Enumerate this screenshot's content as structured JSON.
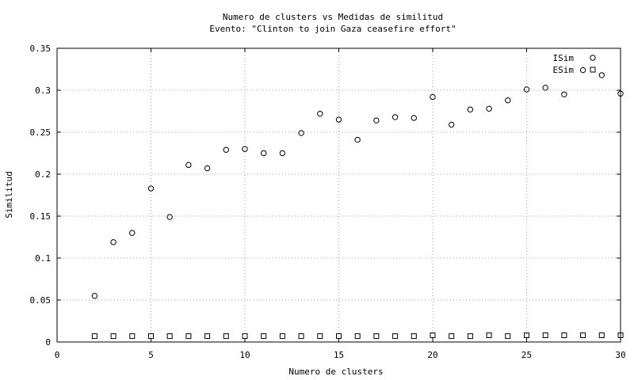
{
  "chart_data": {
    "type": "scatter",
    "title": "Numero de clusters vs Medidas de similitud",
    "subtitle": "Evento: \"Clinton to join Gaza ceasefire effort\"",
    "xlabel": "Numero de clusters",
    "ylabel": "Similitud",
    "xlim": [
      0,
      30
    ],
    "ylim": [
      0,
      0.35
    ],
    "xticks": [
      0,
      5,
      10,
      15,
      20,
      25,
      30
    ],
    "yticks": [
      0,
      0.05,
      0.1,
      0.15,
      0.2,
      0.25,
      0.3,
      0.35
    ],
    "xtick_labels": [
      "0",
      "5",
      "10",
      "15",
      "20",
      "25",
      "30"
    ],
    "ytick_labels": [
      "0",
      "0.05",
      "0.1",
      "0.15",
      "0.2",
      "0.25",
      "0.3",
      "0.35"
    ],
    "grid": true,
    "legend_position": "top-right",
    "x": [
      2,
      3,
      4,
      5,
      6,
      7,
      8,
      9,
      10,
      11,
      12,
      13,
      14,
      15,
      16,
      17,
      18,
      19,
      20,
      21,
      22,
      23,
      24,
      25,
      26,
      27,
      28,
      29,
      30
    ],
    "series": [
      {
        "name": "ISim",
        "marker": "circle",
        "values": [
          0.055,
          0.119,
          0.13,
          0.183,
          0.149,
          0.211,
          0.207,
          0.229,
          0.23,
          0.225,
          0.225,
          0.249,
          0.272,
          0.265,
          0.241,
          0.264,
          0.268,
          0.267,
          0.292,
          0.259,
          0.277,
          0.278,
          0.288,
          0.301,
          0.303,
          0.295,
          0.324,
          0.318,
          0.296
        ]
      },
      {
        "name": "ESim",
        "marker": "square",
        "values": [
          0.007,
          0.007,
          0.007,
          0.007,
          0.007,
          0.007,
          0.007,
          0.007,
          0.007,
          0.007,
          0.007,
          0.007,
          0.007,
          0.007,
          0.007,
          0.007,
          0.007,
          0.007,
          0.008,
          0.007,
          0.007,
          0.008,
          0.007,
          0.008,
          0.008,
          0.008,
          0.008,
          0.008,
          0.008
        ]
      }
    ]
  }
}
